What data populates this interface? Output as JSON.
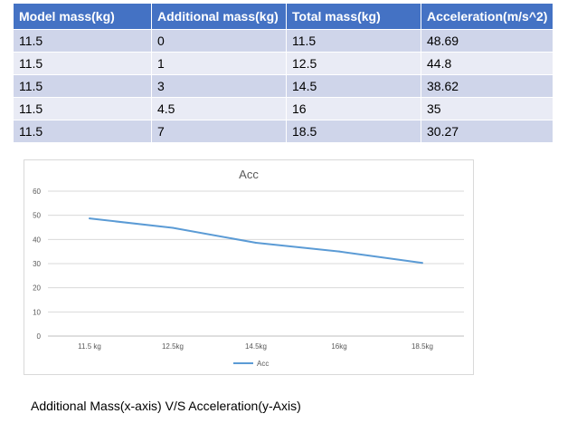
{
  "table": {
    "headers": [
      "Model mass(kg)",
      "Additional mass(kg)",
      "Total mass(kg)",
      "Acceleration(m/s^2)"
    ],
    "rows": [
      [
        "11.5",
        "0",
        "11.5",
        "48.69"
      ],
      [
        "11.5",
        "1",
        "12.5",
        "44.8"
      ],
      [
        "11.5",
        "3",
        "14.5",
        "38.62"
      ],
      [
        "11.5",
        "4.5",
        "16",
        "35"
      ],
      [
        "11.5",
        "7",
        "18.5",
        "30.27"
      ]
    ]
  },
  "chart_data": {
    "type": "line",
    "title": "Acc",
    "categories": [
      "11.5 kg",
      "12.5kg",
      "14.5kg",
      "16kg",
      "18.5kg"
    ],
    "series": [
      {
        "name": "Acc",
        "values": [
          48.69,
          44.8,
          38.62,
          35,
          30.27
        ],
        "color": "#5b9bd5"
      }
    ],
    "ylim": [
      0,
      60
    ],
    "yticks": [
      "0",
      "10",
      "20",
      "30",
      "40",
      "50",
      "60"
    ],
    "grid": true,
    "legend": "bottom"
  },
  "caption": "Additional Mass(x-axis) V/S Acceleration(y-Axis)"
}
